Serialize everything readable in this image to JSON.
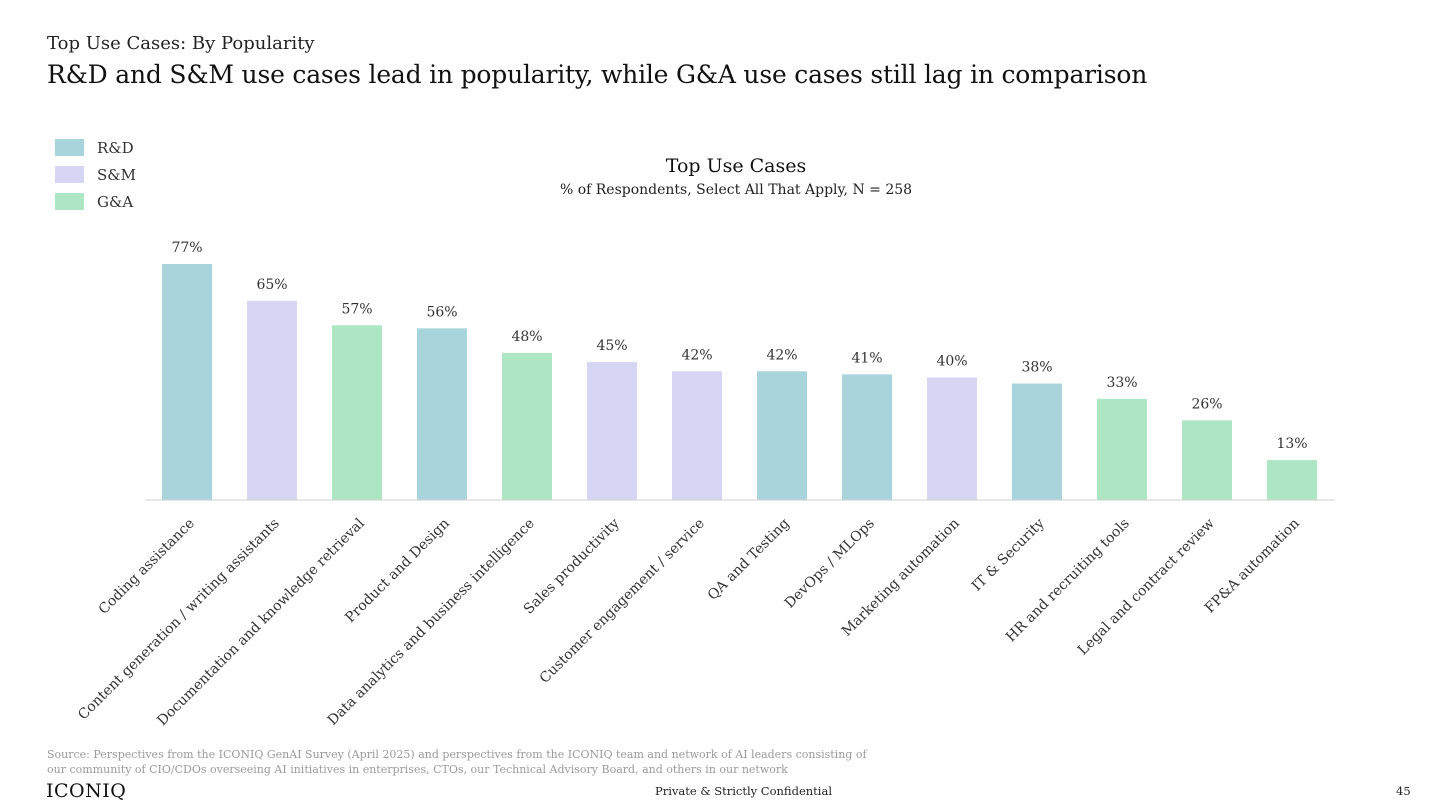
{
  "page": {
    "eyebrow": "Top Use Cases: By Popularity",
    "headline": "R&D and S&M use cases lead in popularity, while G&A use cases still lag in comparison",
    "source": "Source: Perspectives from the ICONIQ GenAI Survey (April 2025) and perspectives from the ICONIQ team and network of AI leaders consisting of our community of CIO/CDOs overseeing AI initiatives in enterprises, CTOs, our Technical Advisory Board, and others in our network",
    "logo": "ICONIQ",
    "confidential": "Private & Strictly Confidential",
    "page_number": "45"
  },
  "legend": [
    {
      "label": "R&D",
      "color": "#a8d5dc"
    },
    {
      "label": "S&M",
      "color": "#d6d5f3"
    },
    {
      "label": "G&A",
      "color": "#ace6c3"
    }
  ],
  "chart_data": {
    "type": "bar",
    "title": "Top Use Cases",
    "subtitle": "% of Respondents, Select All That Apply, N = 258",
    "categories": [
      "Coding assistance",
      "Content generation / writing assistants",
      "Documentation and knowledge retrieval",
      "Product and Design",
      "Data analytics and business intelligence",
      "Sales productivity",
      "Customer engagement / service",
      "QA and Testing",
      "DevOps / MLOps",
      "Marketing automation",
      "IT & Security",
      "HR and recruiting tools",
      "Legal and contract review",
      "FP&A automation"
    ],
    "values": [
      77,
      65,
      57,
      56,
      48,
      45,
      42,
      42,
      41,
      40,
      38,
      33,
      26,
      13
    ],
    "data_labels": [
      "77%",
      "65%",
      "57%",
      "56%",
      "48%",
      "45%",
      "42%",
      "42%",
      "41%",
      "40%",
      "38%",
      "33%",
      "26%",
      "13%"
    ],
    "groups": [
      "R&D",
      "S&M",
      "G&A",
      "R&D",
      "G&A",
      "S&M",
      "S&M",
      "R&D",
      "R&D",
      "S&M",
      "R&D",
      "G&A",
      "G&A",
      "G&A"
    ],
    "colors": {
      "R&D": "#a8d5dc",
      "S&M": "#d6d5f3",
      "G&A": "#ace6c3"
    },
    "ylim": [
      0,
      100
    ],
    "grid": false,
    "legend_position": "top-left"
  }
}
